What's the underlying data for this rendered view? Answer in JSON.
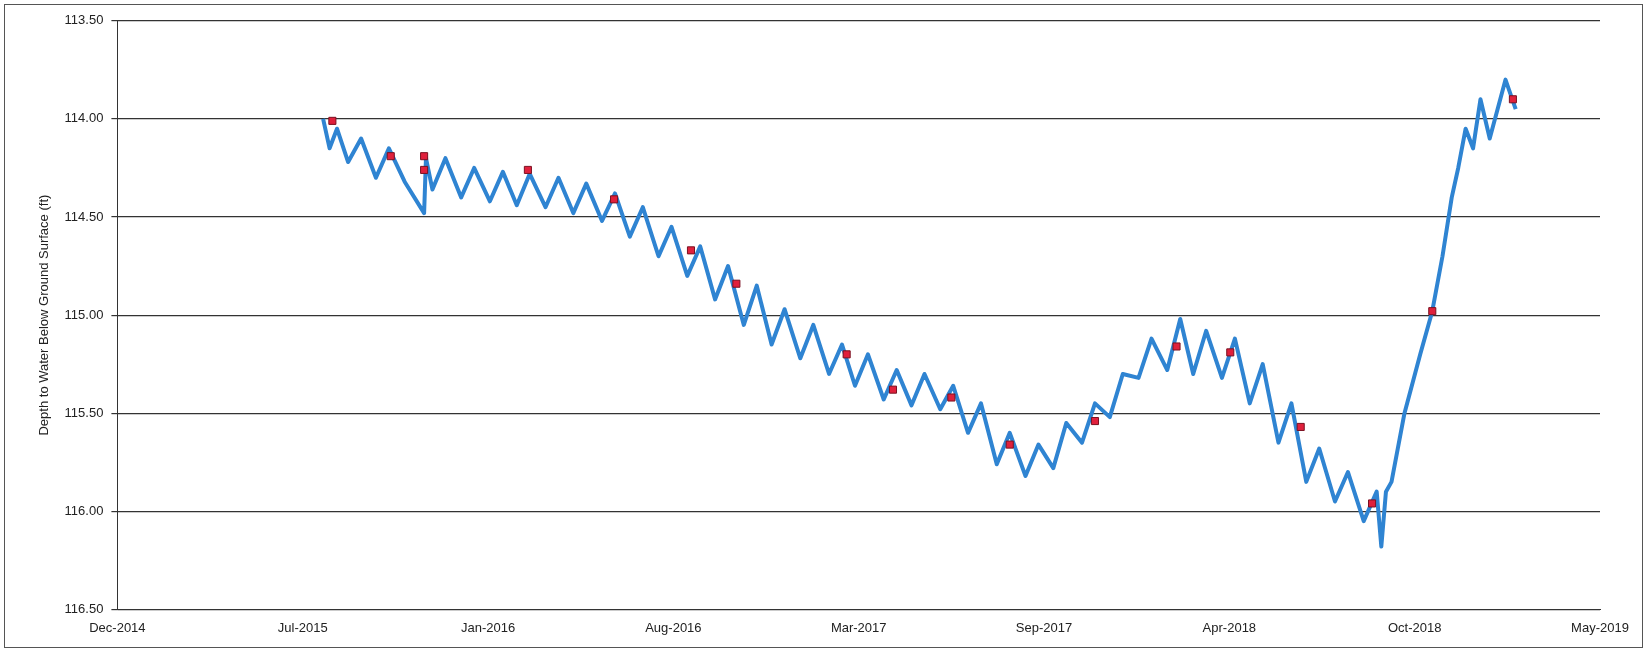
{
  "chart_data": {
    "type": "line",
    "ylabel": "Depth to Water Below Ground Surface (ft)",
    "xlim": [
      "2014-12-26",
      "2019-05-14"
    ],
    "xticks": [
      {
        "value": "2014-12-26",
        "label": "Dec-2014"
      },
      {
        "value": "2015-07-14",
        "label": "Jul-2015"
      },
      {
        "value": "2016-01-30",
        "label": "Jan-2016"
      },
      {
        "value": "2016-08-17",
        "label": "Aug-2016"
      },
      {
        "value": "2017-03-05",
        "label": "Mar-2017"
      },
      {
        "value": "2017-09-21",
        "label": "Sep-2017"
      },
      {
        "value": "2018-04-09",
        "label": "Apr-2018"
      },
      {
        "value": "2018-10-26",
        "label": "Oct-2018"
      },
      {
        "value": "2019-05-14",
        "label": "May-2019"
      }
    ],
    "ylim": [
      116.5,
      113.5
    ],
    "yticks": [
      {
        "value": 113.5,
        "label": "113.50"
      },
      {
        "value": 114,
        "label": "114.00"
      },
      {
        "value": 114.5,
        "label": "114.50"
      },
      {
        "value": 115,
        "label": "115.00"
      },
      {
        "value": 115.5,
        "label": "115.50"
      },
      {
        "value": 116,
        "label": "116.00"
      },
      {
        "value": 116.5,
        "label": "116.50"
      }
    ],
    "grid": "y",
    "legend": false,
    "series": [
      {
        "color": "#2f84d2",
        "marker": "none",
        "x": [
          "2015-08-05",
          "2015-08-12",
          "2015-08-20",
          "2015-09-01",
          "2015-09-15",
          "2015-10-01",
          "2015-10-15",
          "2015-11-01",
          "2015-11-22",
          "2015-11-24",
          "2015-12-01",
          "2015-12-15",
          "2016-01-01",
          "2016-01-15",
          "2016-02-01",
          "2016-02-15",
          "2016-03-01",
          "2016-03-15",
          "2016-04-01",
          "2016-04-15",
          "2016-05-01",
          "2016-05-15",
          "2016-06-01",
          "2016-06-15",
          "2016-07-01",
          "2016-07-15",
          "2016-08-01",
          "2016-08-15",
          "2016-09-01",
          "2016-09-15",
          "2016-10-01",
          "2016-10-15",
          "2016-11-01",
          "2016-11-15",
          "2016-12-01",
          "2016-12-15",
          "2017-01-01",
          "2017-01-15",
          "2017-02-01",
          "2017-02-15",
          "2017-03-01",
          "2017-03-15",
          "2017-04-01",
          "2017-04-15",
          "2017-05-01",
          "2017-05-15",
          "2017-06-01",
          "2017-06-15",
          "2017-07-01",
          "2017-07-15",
          "2017-08-01",
          "2017-08-15",
          "2017-09-01",
          "2017-09-15",
          "2017-10-01",
          "2017-10-15",
          "2017-11-01",
          "2017-11-15",
          "2017-12-01",
          "2017-12-15",
          "2018-01-01",
          "2018-01-15",
          "2018-02-01",
          "2018-02-15",
          "2018-03-01",
          "2018-03-15",
          "2018-04-01",
          "2018-04-15",
          "2018-05-01",
          "2018-05-15",
          "2018-06-01",
          "2018-06-15",
          "2018-07-01",
          "2018-07-15",
          "2018-08-01",
          "2018-08-15",
          "2018-09-01",
          "2018-09-15",
          "2018-09-20",
          "2018-09-25",
          "2018-10-01",
          "2018-10-15",
          "2018-11-01",
          "2018-11-14",
          "2018-11-25",
          "2018-12-05",
          "2018-12-12",
          "2018-12-20",
          "2018-12-28",
          "2019-01-05",
          "2019-01-15",
          "2019-02-01",
          "2019-02-12"
        ],
        "values": [
          114.0,
          114.15,
          114.05,
          114.22,
          114.1,
          114.3,
          114.15,
          114.32,
          114.48,
          114.2,
          114.36,
          114.2,
          114.4,
          114.25,
          114.42,
          114.27,
          114.44,
          114.28,
          114.45,
          114.3,
          114.48,
          114.33,
          114.52,
          114.38,
          114.6,
          114.45,
          114.7,
          114.55,
          114.8,
          114.65,
          114.92,
          114.75,
          115.05,
          114.85,
          115.15,
          114.97,
          115.22,
          115.05,
          115.3,
          115.15,
          115.36,
          115.2,
          115.43,
          115.28,
          115.46,
          115.3,
          115.48,
          115.36,
          115.6,
          115.45,
          115.76,
          115.6,
          115.82,
          115.66,
          115.78,
          115.55,
          115.65,
          115.45,
          115.52,
          115.3,
          115.32,
          115.12,
          115.28,
          115.02,
          115.3,
          115.08,
          115.32,
          115.12,
          115.45,
          115.25,
          115.65,
          115.45,
          115.85,
          115.68,
          115.95,
          115.8,
          116.05,
          115.9,
          116.18,
          115.9,
          115.85,
          115.5,
          115.2,
          114.98,
          114.7,
          114.4,
          114.25,
          114.05,
          114.15,
          113.9,
          114.1,
          113.8,
          113.95
        ]
      },
      {
        "type": "scatter",
        "color": "#e0203c",
        "marker": "square",
        "x": [
          "2015-08-15",
          "2015-10-17",
          "2015-11-22",
          "2015-11-22",
          "2016-03-13",
          "2016-06-14",
          "2016-09-05",
          "2016-10-24",
          "2017-02-20",
          "2017-04-11",
          "2017-06-13",
          "2017-08-15",
          "2017-11-15",
          "2018-02-11",
          "2018-04-10",
          "2018-06-25",
          "2018-09-10",
          "2018-11-14",
          "2019-02-09"
        ],
        "values": [
          114.01,
          114.19,
          114.19,
          114.26,
          114.26,
          114.41,
          114.67,
          114.84,
          115.2,
          115.38,
          115.42,
          115.66,
          115.54,
          115.16,
          115.19,
          115.57,
          115.96,
          114.98,
          113.9
        ]
      }
    ]
  }
}
